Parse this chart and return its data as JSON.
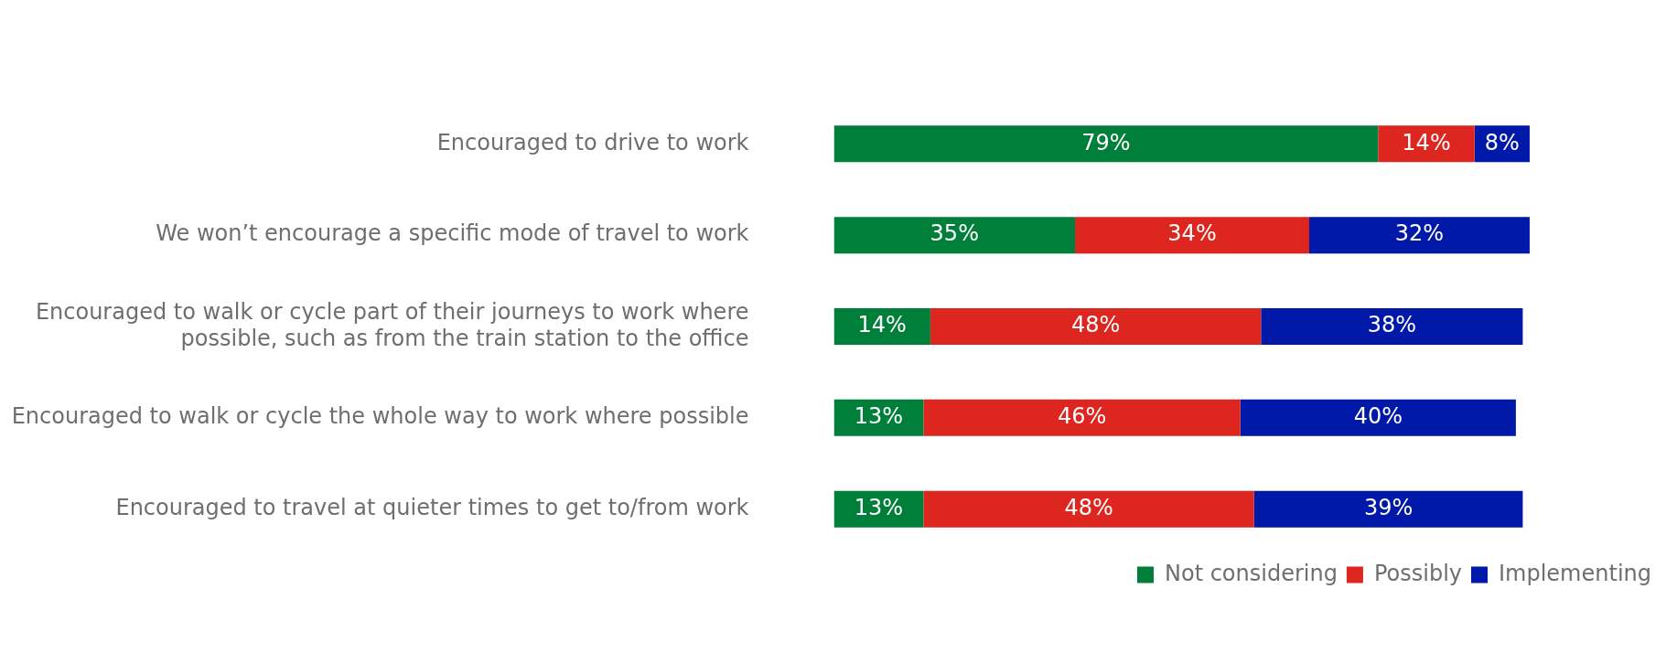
{
  "chart_data": {
    "type": "bar",
    "orientation": "horizontal",
    "stacked": true,
    "categories": [
      "Encouraged to drive to work",
      "We won’t encourage a specific mode of travel to work",
      "Encouraged to walk or cycle part of their journeys to work where possible, such as from the train station to the office",
      "Encouraged to walk or cycle the whole way to work where possible",
      "Encouraged to travel at quieter times to get to/from work"
    ],
    "series": [
      {
        "name": "Not considering",
        "color": "#007f3a",
        "values": [
          79,
          35,
          14,
          13,
          13
        ],
        "value_labels": [
          "79%",
          "35%",
          "14%",
          "13%",
          "13%"
        ]
      },
      {
        "name": "Possibly",
        "color": "#dd2620",
        "values": [
          14,
          34,
          48,
          46,
          48
        ],
        "value_labels": [
          "14%",
          "34%",
          "48%",
          "46%",
          "48%"
        ]
      },
      {
        "name": "Implementing",
        "color": "#0019a8",
        "values": [
          8,
          32,
          38,
          40,
          39
        ],
        "value_labels": [
          "8%",
          "32%",
          "38%",
          "40%",
          "39%"
        ]
      }
    ],
    "tick_labels": "y",
    "legend": "bottom right"
  }
}
